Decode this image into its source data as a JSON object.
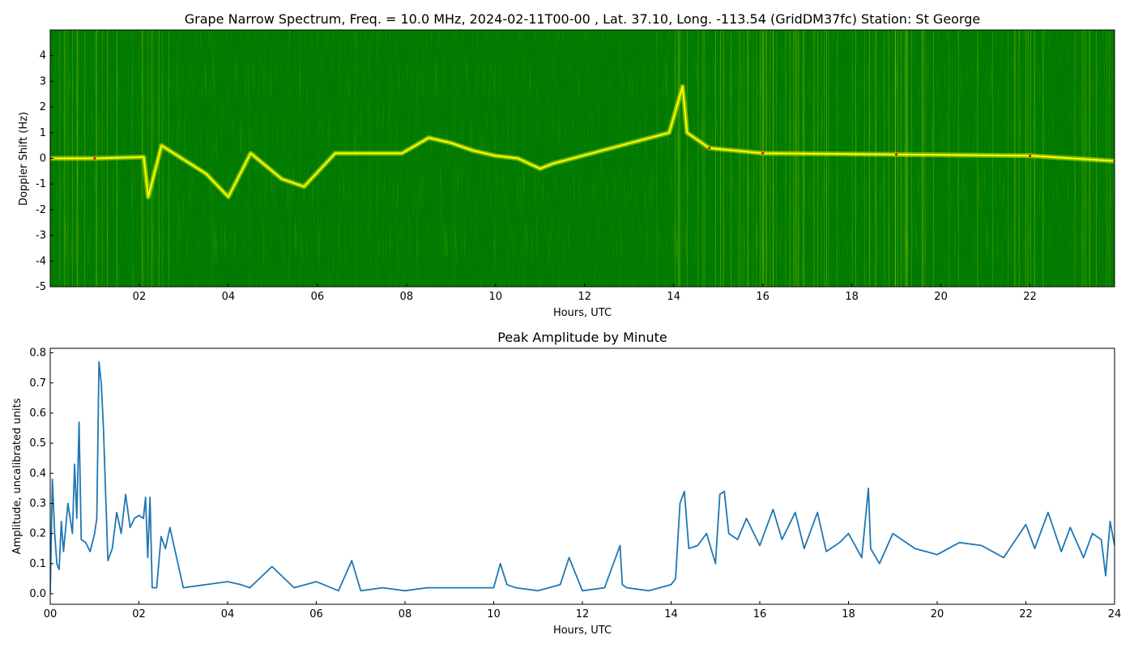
{
  "chart_data": [
    {
      "type": "heatmap",
      "title": "Grape Narrow Spectrum, Freq. = 10.0 MHz, 2024-02-11T00-00 , Lat.  37.10, Long. -113.54 (GridDM37fc) Station: St George",
      "xlabel": "Hours, UTC",
      "ylabel": "Doppler Shift (Hz)",
      "xlim": [
        0,
        23.9
      ],
      "ylim": [
        -5,
        5
      ],
      "x_ticks": [
        "02",
        "04",
        "06",
        "08",
        "10",
        "12",
        "14",
        "16",
        "18",
        "20",
        "22"
      ],
      "y_ticks": [
        "-5",
        "-4",
        "-3",
        "-2",
        "-1",
        "0",
        "1",
        "2",
        "3",
        "4"
      ],
      "colormap": [
        "#008000",
        "#ffff00",
        "#ff0000"
      ],
      "doppler_trace": [
        {
          "x": 0.0,
          "y": 0.0
        },
        {
          "x": 1.0,
          "y": 0.0
        },
        {
          "x": 2.1,
          "y": 0.05
        },
        {
          "x": 2.2,
          "y": -1.5
        },
        {
          "x": 2.5,
          "y": 0.5
        },
        {
          "x": 3.5,
          "y": -0.6
        },
        {
          "x": 4.0,
          "y": -1.5
        },
        {
          "x": 4.5,
          "y": 0.2
        },
        {
          "x": 5.2,
          "y": -0.8
        },
        {
          "x": 5.7,
          "y": -1.1
        },
        {
          "x": 6.4,
          "y": 0.2
        },
        {
          "x": 7.9,
          "y": 0.2
        },
        {
          "x": 8.5,
          "y": 0.8
        },
        {
          "x": 9.0,
          "y": 0.6
        },
        {
          "x": 9.5,
          "y": 0.3
        },
        {
          "x": 10.0,
          "y": 0.1
        },
        {
          "x": 10.5,
          "y": 0.0
        },
        {
          "x": 11.0,
          "y": -0.4
        },
        {
          "x": 11.3,
          "y": -0.2
        },
        {
          "x": 13.9,
          "y": 1.0
        },
        {
          "x": 14.2,
          "y": 2.8
        },
        {
          "x": 14.3,
          "y": 1.0
        },
        {
          "x": 14.8,
          "y": 0.4
        },
        {
          "x": 16.0,
          "y": 0.2
        },
        {
          "x": 19.0,
          "y": 0.15
        },
        {
          "x": 22.0,
          "y": 0.1
        },
        {
          "x": 23.9,
          "y": -0.1
        }
      ]
    },
    {
      "type": "line",
      "title": "Peak Amplitude by Minute",
      "xlabel": "Hours, UTC",
      "ylabel": "Amplitude, uncalibrated units",
      "xlim": [
        0,
        24
      ],
      "ylim": [
        -0.035,
        0.815
      ],
      "x_ticks": [
        "00",
        "02",
        "04",
        "06",
        "08",
        "10",
        "12",
        "14",
        "16",
        "18",
        "20",
        "22",
        "24"
      ],
      "y_ticks": [
        "0.0",
        "0.1",
        "0.2",
        "0.3",
        "0.4",
        "0.5",
        "0.6",
        "0.7",
        "0.8"
      ],
      "line_color": "#1f77b4",
      "series": [
        {
          "x": [
            0,
            0.05,
            0.1,
            0.15,
            0.2,
            0.25,
            0.3,
            0.4,
            0.5,
            0.55,
            0.6,
            0.65,
            0.7,
            0.8,
            0.9,
            1.0,
            1.05,
            1.1,
            1.15,
            1.2,
            1.3,
            1.4,
            1.5,
            1.6,
            1.7,
            1.8,
            1.9,
            2.0,
            2.1,
            2.15,
            2.2,
            2.25,
            2.3,
            2.4,
            2.5,
            2.6,
            2.7,
            3.0,
            3.5,
            4.0,
            4.3,
            4.5,
            5.0,
            5.5,
            6.0,
            6.5,
            6.8,
            7.0,
            7.5,
            8.0,
            8.5,
            9.0,
            9.5,
            10.0,
            10.15,
            10.3,
            10.5,
            11.0,
            11.5,
            11.7,
            12.0,
            12.5,
            12.85,
            12.9,
            13.0,
            13.5,
            14.0,
            14.1,
            14.2,
            14.3,
            14.4,
            14.6,
            14.8,
            15.0,
            15.1,
            15.2,
            15.3,
            15.5,
            15.7,
            16.0,
            16.3,
            16.5,
            16.8,
            17.0,
            17.3,
            17.5,
            17.8,
            18.0,
            18.3,
            18.45,
            18.5,
            18.7,
            19.0,
            19.5,
            20.0,
            20.5,
            21.0,
            21.5,
            22.0,
            22.2,
            22.5,
            22.8,
            23.0,
            23.3,
            23.5,
            23.7,
            23.8,
            23.9,
            24.0
          ],
          "values": [
            0.0,
            0.38,
            0.2,
            0.1,
            0.08,
            0.24,
            0.14,
            0.3,
            0.2,
            0.43,
            0.25,
            0.57,
            0.18,
            0.17,
            0.14,
            0.2,
            0.25,
            0.77,
            0.7,
            0.55,
            0.11,
            0.15,
            0.27,
            0.2,
            0.33,
            0.22,
            0.25,
            0.26,
            0.25,
            0.32,
            0.12,
            0.32,
            0.02,
            0.02,
            0.19,
            0.15,
            0.22,
            0.02,
            0.03,
            0.04,
            0.03,
            0.02,
            0.09,
            0.02,
            0.04,
            0.01,
            0.11,
            0.01,
            0.02,
            0.01,
            0.02,
            0.02,
            0.02,
            0.02,
            0.1,
            0.03,
            0.02,
            0.01,
            0.03,
            0.12,
            0.01,
            0.02,
            0.16,
            0.03,
            0.02,
            0.01,
            0.03,
            0.05,
            0.3,
            0.34,
            0.15,
            0.16,
            0.2,
            0.1,
            0.33,
            0.34,
            0.2,
            0.18,
            0.25,
            0.16,
            0.28,
            0.18,
            0.27,
            0.15,
            0.27,
            0.14,
            0.17,
            0.2,
            0.12,
            0.35,
            0.15,
            0.1,
            0.2,
            0.15,
            0.13,
            0.17,
            0.16,
            0.12,
            0.23,
            0.15,
            0.27,
            0.14,
            0.22,
            0.12,
            0.2,
            0.18,
            0.06,
            0.24,
            0.16
          ]
        }
      ]
    }
  ]
}
